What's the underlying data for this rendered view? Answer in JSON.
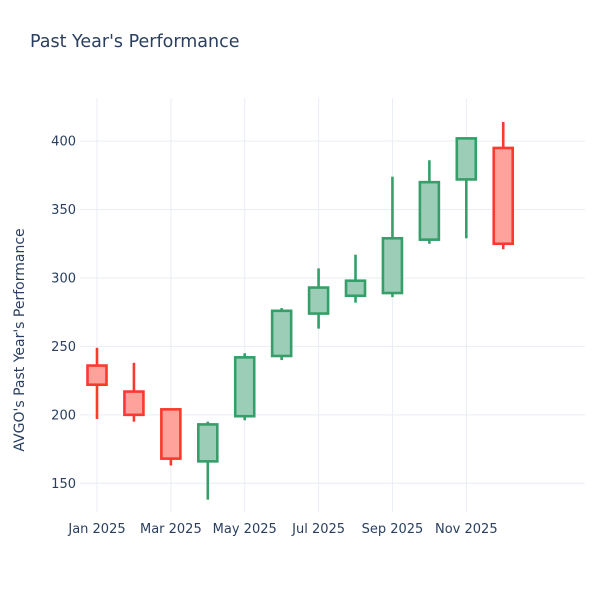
{
  "page": {
    "background_color": "#ffffff",
    "text_color": "#2a3f5f"
  },
  "chart_data": {
    "type": "candlestick",
    "title": "Past Year's Performance",
    "xlabel": "",
    "ylabel": "AVGO's Past Year's Performance",
    "ticker": "AVGO",
    "grid": true,
    "legend": "none",
    "ylim": [
      129,
      431.5
    ],
    "y_ticks": [
      150,
      200,
      250,
      300,
      350,
      400
    ],
    "x_tick_labels": [
      "Jan 2025",
      "Mar 2025",
      "May 2025",
      "Jul 2025",
      "Sep 2025",
      "Nov 2025"
    ],
    "candles": [
      {
        "month": "Jan 2025",
        "open": 236,
        "high": 249,
        "low": 197,
        "close": 222
      },
      {
        "month": "Feb 2025",
        "open": 217,
        "high": 238,
        "low": 195,
        "close": 200
      },
      {
        "month": "Mar 2025",
        "open": 204,
        "high": 204,
        "low": 163,
        "close": 168
      },
      {
        "month": "Apr 2025",
        "open": 166,
        "high": 195,
        "low": 138,
        "close": 193
      },
      {
        "month": "May 2025",
        "open": 199,
        "high": 245,
        "low": 196,
        "close": 242
      },
      {
        "month": "Jun 2025",
        "open": 243,
        "high": 278,
        "low": 240,
        "close": 276
      },
      {
        "month": "Jul 2025",
        "open": 274,
        "high": 307,
        "low": 263,
        "close": 293
      },
      {
        "month": "Aug 2025",
        "open": 287,
        "high": 317,
        "low": 282,
        "close": 298
      },
      {
        "month": "Sep 2025",
        "open": 289,
        "high": 374,
        "low": 286,
        "close": 329
      },
      {
        "month": "Oct 2025",
        "open": 328,
        "high": 386,
        "low": 325,
        "close": 370
      },
      {
        "month": "Nov 2025",
        "open": 372,
        "high": 402,
        "low": 329,
        "close": 402
      },
      {
        "month": "Dec 2025",
        "open": 395,
        "high": 414,
        "low": 321,
        "close": 325
      }
    ],
    "colors": {
      "increasing_line": "#359e69",
      "increasing_fill": "#9ccdb7",
      "decreasing_line": "#fb392e",
      "decreasing_fill": "#ffa29b",
      "grid": "#e9edf5",
      "text": "#2a3f5f"
    }
  }
}
